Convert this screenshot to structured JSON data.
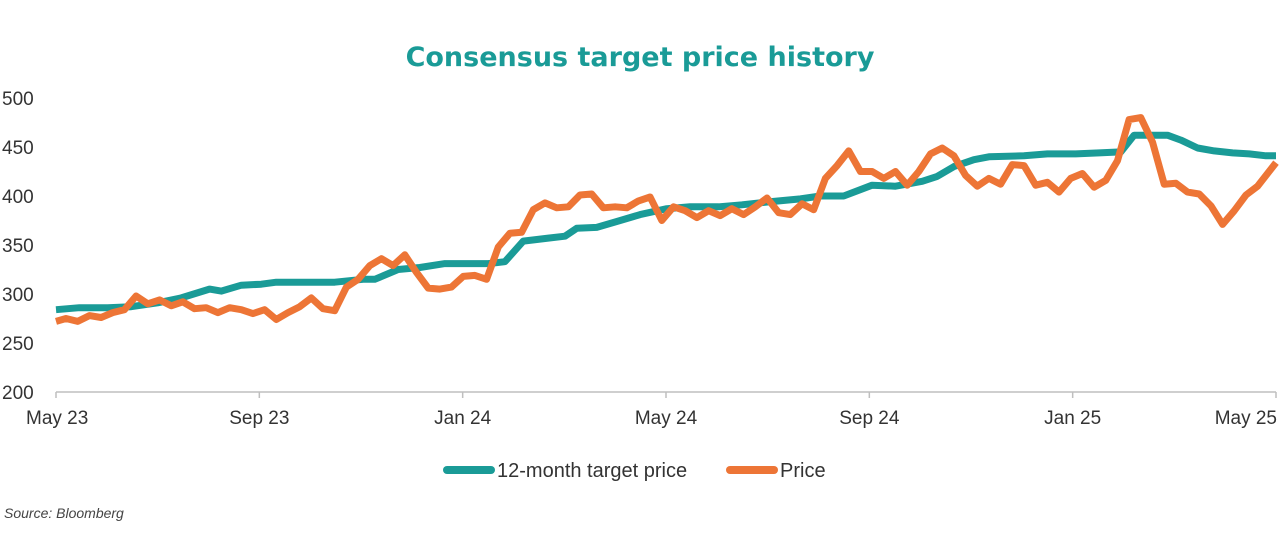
{
  "chart_data": {
    "type": "line",
    "title": "Consensus target price history",
    "source": "Source: Bloomberg",
    "xlabel": "",
    "ylabel": "",
    "ylim": [
      200,
      500
    ],
    "yticks": [
      200,
      250,
      300,
      350,
      400,
      450,
      500
    ],
    "xticks": [
      "May 23",
      "Sep 23",
      "Jan 24",
      "May 24",
      "Sep 24",
      "Jan 25",
      "May 25"
    ],
    "x_range": [
      "2023-05-01",
      "2025-05-01"
    ],
    "grid": false,
    "legend_position": "bottom",
    "colors": {
      "title": "#1a9b97",
      "target": "#1a9b97",
      "price": "#ed7536",
      "axis": "#bfbfbf"
    },
    "series": [
      {
        "name": "12-month target price",
        "key": "target",
        "points": [
          [
            "2023-05-01",
            284
          ],
          [
            "2023-05-15",
            286
          ],
          [
            "2023-06-01",
            286
          ],
          [
            "2023-06-15",
            287
          ],
          [
            "2023-07-01",
            291
          ],
          [
            "2023-07-15",
            296
          ],
          [
            "2023-08-01",
            305
          ],
          [
            "2023-08-08",
            303
          ],
          [
            "2023-08-20",
            309
          ],
          [
            "2023-09-01",
            310
          ],
          [
            "2023-09-10",
            312
          ],
          [
            "2023-10-01",
            312
          ],
          [
            "2023-10-15",
            312
          ],
          [
            "2023-11-01",
            315
          ],
          [
            "2023-11-08",
            315
          ],
          [
            "2023-11-22",
            325
          ],
          [
            "2023-12-05",
            327
          ],
          [
            "2023-12-20",
            331
          ],
          [
            "2024-01-01",
            331
          ],
          [
            "2024-01-15",
            331
          ],
          [
            "2024-01-25",
            333
          ],
          [
            "2024-02-05",
            354
          ],
          [
            "2024-02-20",
            357
          ],
          [
            "2024-03-01",
            359
          ],
          [
            "2024-03-08",
            367
          ],
          [
            "2024-03-20",
            368
          ],
          [
            "2024-04-01",
            374
          ],
          [
            "2024-04-15",
            381
          ],
          [
            "2024-05-01",
            387
          ],
          [
            "2024-05-15",
            389
          ],
          [
            "2024-06-01",
            389
          ],
          [
            "2024-06-15",
            391
          ],
          [
            "2024-07-01",
            394
          ],
          [
            "2024-07-20",
            397
          ],
          [
            "2024-08-01",
            400
          ],
          [
            "2024-08-15",
            400
          ],
          [
            "2024-09-01",
            411
          ],
          [
            "2024-09-15",
            410
          ],
          [
            "2024-10-01",
            415
          ],
          [
            "2024-10-10",
            420
          ],
          [
            "2024-10-20",
            430
          ],
          [
            "2024-11-01",
            437
          ],
          [
            "2024-11-10",
            440
          ],
          [
            "2024-12-01",
            441
          ],
          [
            "2024-12-15",
            443
          ],
          [
            "2025-01-01",
            443
          ],
          [
            "2025-01-15",
            444
          ],
          [
            "2025-01-28",
            445
          ],
          [
            "2025-02-05",
            462
          ],
          [
            "2025-02-15",
            462
          ],
          [
            "2025-02-25",
            462
          ],
          [
            "2025-03-05",
            457
          ],
          [
            "2025-03-15",
            449
          ],
          [
            "2025-03-25",
            446
          ],
          [
            "2025-04-05",
            444
          ],
          [
            "2025-04-15",
            443
          ],
          [
            "2025-04-25",
            441
          ],
          [
            "2025-05-01",
            441
          ]
        ]
      },
      {
        "name": "Price",
        "key": "price",
        "points": [
          [
            "2023-05-01",
            272
          ],
          [
            "2023-05-07",
            275
          ],
          [
            "2023-05-14",
            272
          ],
          [
            "2023-05-21",
            278
          ],
          [
            "2023-05-28",
            276
          ],
          [
            "2023-06-04",
            281
          ],
          [
            "2023-06-11",
            284
          ],
          [
            "2023-06-18",
            298
          ],
          [
            "2023-06-25",
            290
          ],
          [
            "2023-07-02",
            294
          ],
          [
            "2023-07-09",
            288
          ],
          [
            "2023-07-16",
            292
          ],
          [
            "2023-07-23",
            285
          ],
          [
            "2023-07-30",
            286
          ],
          [
            "2023-08-06",
            281
          ],
          [
            "2023-08-13",
            286
          ],
          [
            "2023-08-20",
            284
          ],
          [
            "2023-08-27",
            280
          ],
          [
            "2023-09-03",
            284
          ],
          [
            "2023-09-10",
            274
          ],
          [
            "2023-09-17",
            281
          ],
          [
            "2023-09-24",
            287
          ],
          [
            "2023-10-01",
            296
          ],
          [
            "2023-10-08",
            285
          ],
          [
            "2023-10-15",
            283
          ],
          [
            "2023-10-22",
            307
          ],
          [
            "2023-10-29",
            315
          ],
          [
            "2023-11-05",
            329
          ],
          [
            "2023-11-12",
            336
          ],
          [
            "2023-11-19",
            329
          ],
          [
            "2023-11-26",
            340
          ],
          [
            "2023-12-03",
            322
          ],
          [
            "2023-12-10",
            306
          ],
          [
            "2023-12-17",
            305
          ],
          [
            "2023-12-24",
            307
          ],
          [
            "2023-12-31",
            318
          ],
          [
            "2024-01-07",
            319
          ],
          [
            "2024-01-14",
            315
          ],
          [
            "2024-01-21",
            348
          ],
          [
            "2024-01-28",
            362
          ],
          [
            "2024-02-04",
            363
          ],
          [
            "2024-02-11",
            386
          ],
          [
            "2024-02-18",
            393
          ],
          [
            "2024-02-25",
            388
          ],
          [
            "2024-03-03",
            389
          ],
          [
            "2024-03-10",
            401
          ],
          [
            "2024-03-17",
            402
          ],
          [
            "2024-03-24",
            388
          ],
          [
            "2024-03-31",
            389
          ],
          [
            "2024-04-07",
            388
          ],
          [
            "2024-04-14",
            395
          ],
          [
            "2024-04-21",
            399
          ],
          [
            "2024-04-28",
            375
          ],
          [
            "2024-05-05",
            389
          ],
          [
            "2024-05-12",
            385
          ],
          [
            "2024-05-19",
            378
          ],
          [
            "2024-05-26",
            385
          ],
          [
            "2024-06-02",
            380
          ],
          [
            "2024-06-09",
            387
          ],
          [
            "2024-06-16",
            381
          ],
          [
            "2024-06-23",
            389
          ],
          [
            "2024-06-30",
            398
          ],
          [
            "2024-07-07",
            383
          ],
          [
            "2024-07-14",
            381
          ],
          [
            "2024-07-21",
            392
          ],
          [
            "2024-07-28",
            386
          ],
          [
            "2024-08-04",
            418
          ],
          [
            "2024-08-11",
            431
          ],
          [
            "2024-08-18",
            446
          ],
          [
            "2024-08-25",
            425
          ],
          [
            "2024-09-01",
            425
          ],
          [
            "2024-09-08",
            418
          ],
          [
            "2024-09-15",
            425
          ],
          [
            "2024-09-22",
            411
          ],
          [
            "2024-09-29",
            425
          ],
          [
            "2024-10-06",
            443
          ],
          [
            "2024-10-13",
            449
          ],
          [
            "2024-10-20",
            441
          ],
          [
            "2024-10-27",
            421
          ],
          [
            "2024-11-03",
            410
          ],
          [
            "2024-11-10",
            418
          ],
          [
            "2024-11-17",
            412
          ],
          [
            "2024-11-24",
            432
          ],
          [
            "2024-12-01",
            431
          ],
          [
            "2024-12-08",
            411
          ],
          [
            "2024-12-15",
            414
          ],
          [
            "2024-12-22",
            404
          ],
          [
            "2024-12-29",
            418
          ],
          [
            "2025-01-05",
            423
          ],
          [
            "2025-01-12",
            409
          ],
          [
            "2025-01-19",
            416
          ],
          [
            "2025-01-26",
            436
          ],
          [
            "2025-02-02",
            478
          ],
          [
            "2025-02-09",
            480
          ],
          [
            "2025-02-16",
            455
          ],
          [
            "2025-02-23",
            412
          ],
          [
            "2025-03-02",
            413
          ],
          [
            "2025-03-09",
            404
          ],
          [
            "2025-03-16",
            402
          ],
          [
            "2025-03-23",
            390
          ],
          [
            "2025-03-30",
            371
          ],
          [
            "2025-04-06",
            385
          ],
          [
            "2025-04-13",
            401
          ],
          [
            "2025-04-20",
            410
          ],
          [
            "2025-05-01",
            434
          ]
        ]
      }
    ]
  }
}
